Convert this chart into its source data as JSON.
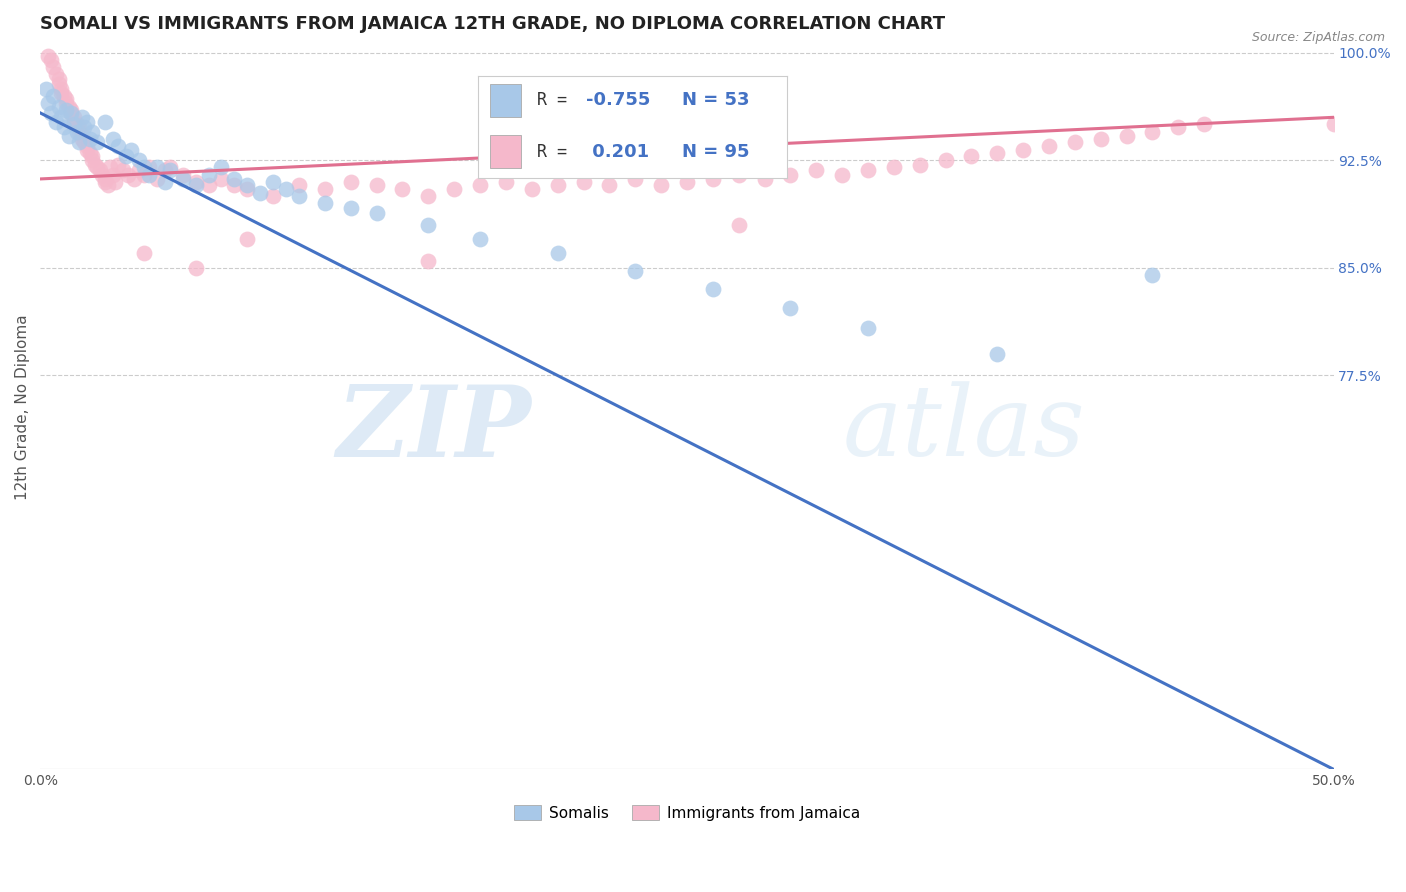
{
  "title": "SOMALI VS IMMIGRANTS FROM JAMAICA 12TH GRADE, NO DIPLOMA CORRELATION CHART",
  "source": "Source: ZipAtlas.com",
  "ylabel": "12th Grade, No Diploma",
  "watermark_zip": "ZIP",
  "watermark_atlas": "atlas",
  "xlim": [
    0.0,
    0.5
  ],
  "ylim": [
    0.5,
    1.005
  ],
  "xticks": [
    0.0,
    0.1,
    0.2,
    0.3,
    0.4,
    0.5
  ],
  "xticklabels": [
    "0.0%",
    "",
    "",
    "",
    "",
    "50.0%"
  ],
  "yticks": [
    0.775,
    0.85,
    0.925,
    1.0
  ],
  "yticklabels": [
    "77.5%",
    "85.0%",
    "92.5%",
    "100.0%"
  ],
  "somali_color": "#a8c8e8",
  "jamaica_color": "#f5b8cb",
  "somali_line_color": "#4472c4",
  "jamaica_line_color": "#e07090",
  "R_somali": -0.755,
  "N_somali": 53,
  "R_jamaica": 0.201,
  "N_jamaica": 95,
  "legend_label_somali": "Somalis",
  "legend_label_jamaica": "Immigrants from Jamaica",
  "somali_x": [
    0.002,
    0.003,
    0.004,
    0.005,
    0.006,
    0.007,
    0.008,
    0.009,
    0.01,
    0.011,
    0.012,
    0.013,
    0.014,
    0.015,
    0.016,
    0.017,
    0.018,
    0.019,
    0.02,
    0.022,
    0.025,
    0.028,
    0.03,
    0.033,
    0.035,
    0.038,
    0.04,
    0.042,
    0.045,
    0.048,
    0.05,
    0.055,
    0.06,
    0.065,
    0.07,
    0.075,
    0.08,
    0.085,
    0.09,
    0.095,
    0.1,
    0.11,
    0.12,
    0.13,
    0.15,
    0.17,
    0.2,
    0.23,
    0.26,
    0.29,
    0.32,
    0.37,
    0.43
  ],
  "somali_y": [
    0.975,
    0.965,
    0.958,
    0.97,
    0.952,
    0.962,
    0.955,
    0.948,
    0.96,
    0.942,
    0.958,
    0.95,
    0.945,
    0.938,
    0.955,
    0.948,
    0.952,
    0.94,
    0.945,
    0.938,
    0.952,
    0.94,
    0.935,
    0.928,
    0.932,
    0.925,
    0.92,
    0.915,
    0.92,
    0.91,
    0.918,
    0.912,
    0.908,
    0.915,
    0.92,
    0.912,
    0.908,
    0.902,
    0.91,
    0.905,
    0.9,
    0.895,
    0.892,
    0.888,
    0.88,
    0.87,
    0.86,
    0.848,
    0.835,
    0.822,
    0.808,
    0.79,
    0.845
  ],
  "jamaica_x": [
    0.003,
    0.004,
    0.005,
    0.006,
    0.007,
    0.007,
    0.008,
    0.008,
    0.009,
    0.01,
    0.01,
    0.011,
    0.012,
    0.012,
    0.013,
    0.013,
    0.014,
    0.015,
    0.015,
    0.016,
    0.016,
    0.017,
    0.018,
    0.018,
    0.019,
    0.02,
    0.02,
    0.021,
    0.022,
    0.023,
    0.024,
    0.025,
    0.025,
    0.026,
    0.027,
    0.028,
    0.029,
    0.03,
    0.032,
    0.034,
    0.036,
    0.038,
    0.04,
    0.042,
    0.045,
    0.048,
    0.05,
    0.055,
    0.06,
    0.065,
    0.07,
    0.075,
    0.08,
    0.09,
    0.1,
    0.11,
    0.12,
    0.13,
    0.14,
    0.15,
    0.16,
    0.17,
    0.18,
    0.19,
    0.2,
    0.21,
    0.22,
    0.23,
    0.24,
    0.25,
    0.26,
    0.27,
    0.28,
    0.29,
    0.3,
    0.31,
    0.32,
    0.33,
    0.34,
    0.35,
    0.36,
    0.37,
    0.38,
    0.39,
    0.4,
    0.41,
    0.42,
    0.43,
    0.44,
    0.45,
    0.27,
    0.15,
    0.08,
    0.06,
    0.04,
    0.5
  ],
  "jamaica_y": [
    0.998,
    0.995,
    0.99,
    0.985,
    0.982,
    0.978,
    0.975,
    0.972,
    0.97,
    0.968,
    0.965,
    0.962,
    0.96,
    0.958,
    0.955,
    0.952,
    0.95,
    0.948,
    0.945,
    0.943,
    0.94,
    0.938,
    0.935,
    0.932,
    0.93,
    0.928,
    0.925,
    0.922,
    0.92,
    0.918,
    0.915,
    0.912,
    0.91,
    0.908,
    0.92,
    0.915,
    0.91,
    0.922,
    0.918,
    0.915,
    0.912,
    0.918,
    0.915,
    0.92,
    0.912,
    0.918,
    0.92,
    0.915,
    0.91,
    0.908,
    0.912,
    0.908,
    0.905,
    0.9,
    0.908,
    0.905,
    0.91,
    0.908,
    0.905,
    0.9,
    0.905,
    0.908,
    0.91,
    0.905,
    0.908,
    0.91,
    0.908,
    0.912,
    0.908,
    0.91,
    0.912,
    0.915,
    0.912,
    0.915,
    0.918,
    0.915,
    0.918,
    0.92,
    0.922,
    0.925,
    0.928,
    0.93,
    0.932,
    0.935,
    0.938,
    0.94,
    0.942,
    0.945,
    0.948,
    0.95,
    0.88,
    0.855,
    0.87,
    0.85,
    0.86,
    0.95
  ],
  "somali_line_x0": 0.0,
  "somali_line_y0": 0.958,
  "somali_line_x1": 0.5,
  "somali_line_y1": 0.5,
  "jamaica_line_x0": 0.0,
  "jamaica_line_y0": 0.912,
  "jamaica_line_x1": 0.5,
  "jamaica_line_y1": 0.955,
  "background_color": "#ffffff",
  "grid_color": "#cccccc",
  "title_fontsize": 13,
  "axis_label_fontsize": 11,
  "tick_fontsize": 10,
  "source_fontsize": 9
}
